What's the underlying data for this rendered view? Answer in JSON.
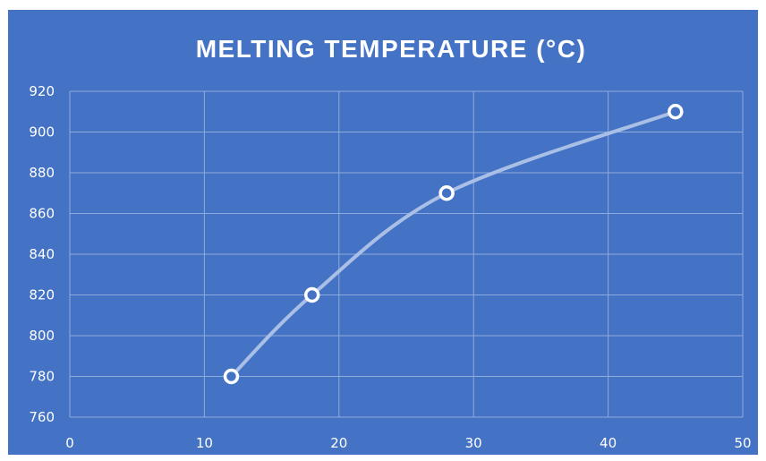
{
  "chart_data": {
    "type": "scatter",
    "title": "MELTING TEMPERATURE (°C)",
    "xlabel": "",
    "ylabel": "",
    "x": [
      12,
      18,
      28,
      45
    ],
    "y": [
      780,
      820,
      870,
      910
    ],
    "xlim": [
      0,
      50
    ],
    "ylim": [
      760,
      920
    ],
    "x_ticks": [
      0,
      10,
      20,
      30,
      40,
      50
    ],
    "y_ticks": [
      760,
      780,
      800,
      820,
      840,
      860,
      880,
      900,
      920
    ],
    "grid": true,
    "smooth_line": true,
    "legend": "none",
    "colors": {
      "background": "#4472C4",
      "line": "#A9BFE6",
      "marker_fill": "#4472C4",
      "marker_edge": "#FFFFFF",
      "grid": "#8FAADC",
      "text": "#FFFFFF"
    }
  }
}
